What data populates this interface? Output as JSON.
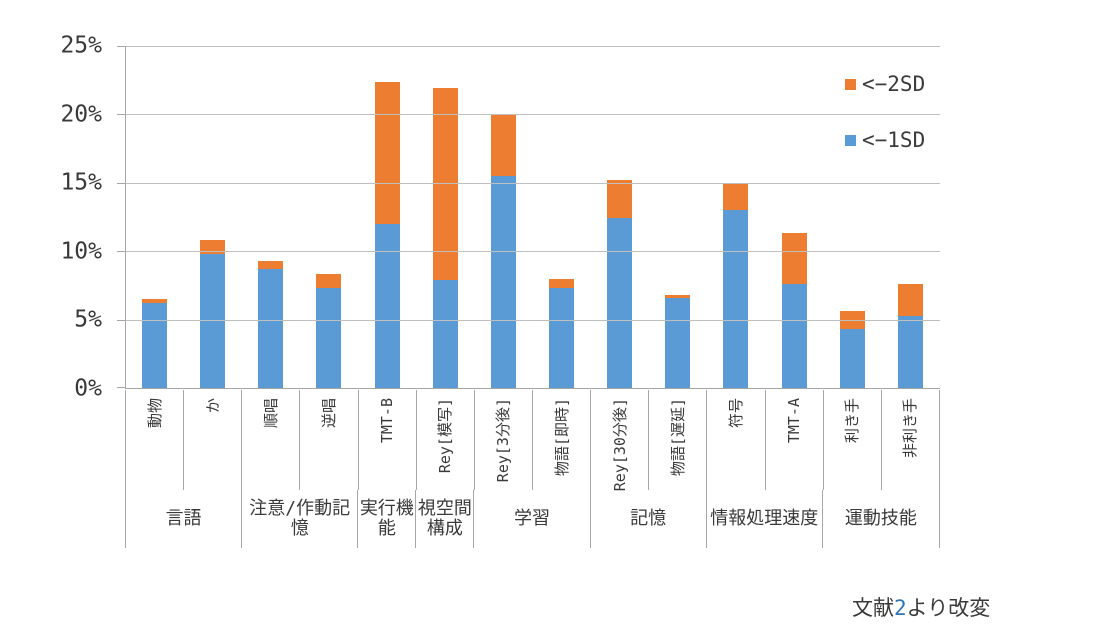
{
  "page": {
    "background": "#ffffff"
  },
  "legend": {
    "items": [
      {
        "label": "<−2SD",
        "color": "#ED7D31"
      },
      {
        "label": "<−1SD",
        "color": "#5B9BD5"
      }
    ]
  },
  "caption": {
    "prefix": "文献",
    "number": "2",
    "suffix": "より改変",
    "number_color": "#2e75b6"
  },
  "chart_data": {
    "type": "bar",
    "stacked": true,
    "title": "",
    "xlabel": "",
    "ylabel": "",
    "unit": "%",
    "ylim": [
      0,
      25
    ],
    "ytick_step": 5,
    "yticks": [
      "0%",
      "5%",
      "10%",
      "15%",
      "20%",
      "25%"
    ],
    "grid": true,
    "legend_position": "top-right",
    "categories": [
      "動物",
      "か",
      "順唱",
      "逆唱",
      "TMT-B",
      "Rey[模写]",
      "Rey[3分後]",
      "物語[即時]",
      "Rey[30分後]",
      "物語[遅延]",
      "符号",
      "TMT-A",
      "利き手",
      "非利き手"
    ],
    "groups": [
      {
        "label": "言語",
        "span": 2
      },
      {
        "label": "注意/作動記憶",
        "span": 2
      },
      {
        "label": "実行機能",
        "span": 1
      },
      {
        "label": "視空間構成",
        "span": 1
      },
      {
        "label": "学習",
        "span": 2
      },
      {
        "label": "記憶",
        "span": 2
      },
      {
        "label": "情報処理速度",
        "span": 2
      },
      {
        "label": "運動技能",
        "span": 2
      }
    ],
    "series": [
      {
        "name": "<−1SD",
        "color": "#5B9BD5",
        "values": [
          6.2,
          9.8,
          8.7,
          7.3,
          12.0,
          7.9,
          15.5,
          7.3,
          12.4,
          6.6,
          13.0,
          7.6,
          4.3,
          5.3
        ]
      },
      {
        "name": "<−2SD",
        "color": "#ED7D31",
        "values": [
          0.3,
          1.0,
          0.6,
          1.0,
          10.4,
          14.0,
          4.5,
          0.7,
          2.8,
          0.2,
          2.0,
          3.7,
          1.3,
          2.3
        ]
      }
    ],
    "stack_totals": [
      6.5,
      10.8,
      9.3,
      8.3,
      22.4,
      21.9,
      20.0,
      8.0,
      15.2,
      6.8,
      15.0,
      11.3,
      5.6,
      7.6
    ]
  }
}
